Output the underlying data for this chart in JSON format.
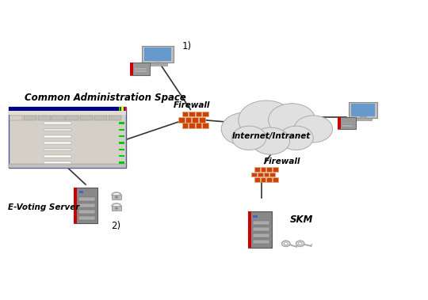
{
  "bg_color": "#ffffff",
  "elements": {
    "common_admin_label": "Common Administration Space",
    "evoting_label": "E-Voting Server",
    "firewall1_label": "Firewall",
    "firewall2_label": "Firewall",
    "cloud_label": "Internet/Intranet",
    "skm_label": "SKM",
    "label_1": "1)",
    "label_2": "2)"
  },
  "colors": {
    "screen_blue": "#6699cc",
    "firewall_brick": "#cc4400",
    "firewall_mortar": "#ddaa88",
    "line_color": "#333333"
  }
}
